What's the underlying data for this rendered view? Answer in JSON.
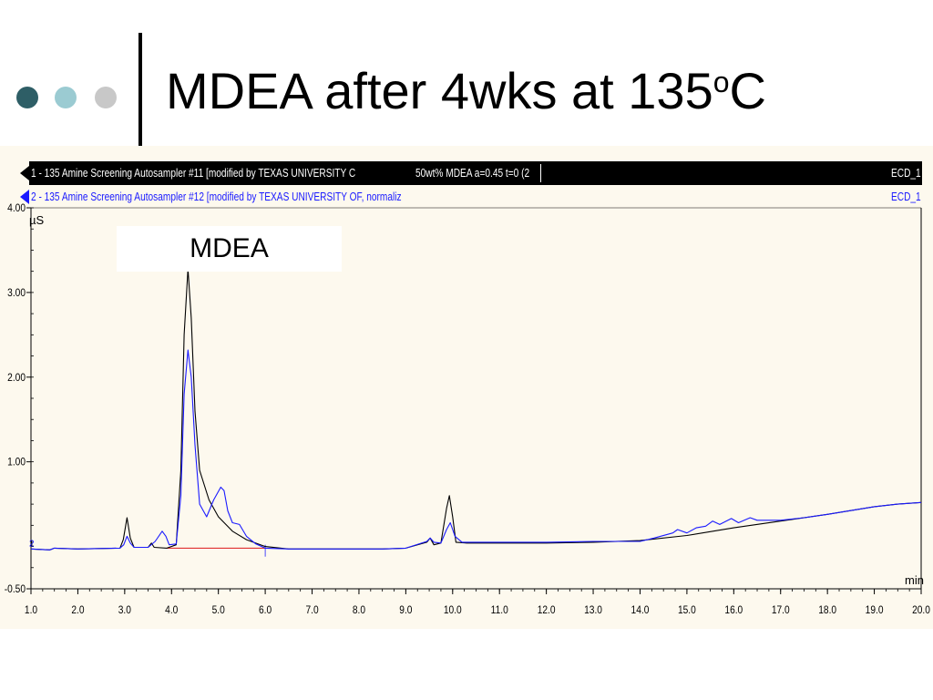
{
  "slide": {
    "title_main": "MDEA after 4wks at 135",
    "title_sup": "o",
    "title_end": "C",
    "dot_colors": [
      "#2e5e66",
      "#9bcbd2",
      "#c8c8c8"
    ]
  },
  "legend": {
    "row1_left": "1 - 135 Amine Screening Autosampler #11 [modified by TEXAS UNIVERSITY C",
    "row1_mid": "50wt% MDEA a=0.45 t=0 (2",
    "row1_right": "ECD_1",
    "row2_left": "2 - 135 Amine Screening Autosampler #12 [modified by TEXAS UNIVERSITY OF, normaliz",
    "row2_right": "ECD_1"
  },
  "annotation": {
    "label": "MDEA"
  },
  "chart_data": {
    "type": "line",
    "x_unit": "min",
    "y_unit": "µS",
    "xlim": [
      1.0,
      20.0
    ],
    "ylim": [
      -0.5,
      4.0
    ],
    "x_ticks": [
      "1.0",
      "2.0",
      "3.0",
      "4.0",
      "5.0",
      "6.0",
      "7.0",
      "8.0",
      "9.0",
      "10.0",
      "11.0",
      "12.0",
      "13.0",
      "14.0",
      "15.0",
      "16.0",
      "17.0",
      "18.0",
      "19.0",
      "20.0"
    ],
    "y_ticks": [
      {
        "value": 4.0,
        "label": "4.00"
      },
      {
        "value": 3.0,
        "label": "3.00"
      },
      {
        "value": 2.0,
        "label": "2.00"
      },
      {
        "value": 1.0,
        "label": "1.00"
      },
      {
        "value": -0.5,
        "label": "-0.50"
      }
    ],
    "series": [
      {
        "label": "1",
        "color": "#000000",
        "points": [
          [
            1.0,
            -0.03
          ],
          [
            1.4,
            -0.04
          ],
          [
            1.5,
            -0.02
          ],
          [
            2.0,
            -0.03
          ],
          [
            2.9,
            -0.02
          ],
          [
            2.97,
            0.08
          ],
          [
            3.05,
            0.34
          ],
          [
            3.12,
            0.1
          ],
          [
            3.2,
            -0.01
          ],
          [
            3.5,
            -0.01
          ],
          [
            3.57,
            0.04
          ],
          [
            3.63,
            -0.01
          ],
          [
            3.9,
            -0.02
          ],
          [
            4.1,
            0.02
          ],
          [
            4.2,
            0.9
          ],
          [
            4.27,
            2.5
          ],
          [
            4.35,
            3.28
          ],
          [
            4.42,
            2.7
          ],
          [
            4.5,
            1.6
          ],
          [
            4.6,
            0.9
          ],
          [
            4.8,
            0.55
          ],
          [
            5.0,
            0.35
          ],
          [
            5.3,
            0.18
          ],
          [
            5.6,
            0.08
          ],
          [
            6.0,
            0.0
          ],
          [
            6.5,
            -0.03
          ],
          [
            8.5,
            -0.03
          ],
          [
            9.0,
            -0.02
          ],
          [
            9.45,
            0.05
          ],
          [
            9.52,
            0.1
          ],
          [
            9.6,
            0.02
          ],
          [
            9.75,
            0.04
          ],
          [
            9.87,
            0.45
          ],
          [
            9.93,
            0.6
          ],
          [
            10.0,
            0.35
          ],
          [
            10.07,
            0.05
          ],
          [
            10.3,
            0.04
          ],
          [
            12.0,
            0.04
          ],
          [
            13.0,
            0.05
          ],
          [
            14.0,
            0.07
          ],
          [
            15.0,
            0.13
          ],
          [
            16.0,
            0.22
          ],
          [
            17.0,
            0.3
          ],
          [
            18.0,
            0.38
          ],
          [
            19.0,
            0.47
          ],
          [
            19.5,
            0.5
          ],
          [
            20.0,
            0.52
          ]
        ]
      },
      {
        "label": "2",
        "color": "#1a1aff",
        "points": [
          [
            1.0,
            -0.03
          ],
          [
            1.4,
            -0.04
          ],
          [
            1.5,
            -0.02
          ],
          [
            2.0,
            -0.03
          ],
          [
            2.9,
            -0.02
          ],
          [
            2.98,
            0.02
          ],
          [
            3.05,
            0.12
          ],
          [
            3.12,
            0.04
          ],
          [
            3.2,
            -0.01
          ],
          [
            3.5,
            -0.01
          ],
          [
            3.65,
            0.06
          ],
          [
            3.8,
            0.18
          ],
          [
            3.88,
            0.12
          ],
          [
            3.95,
            0.02
          ],
          [
            4.1,
            0.03
          ],
          [
            4.2,
            0.6
          ],
          [
            4.27,
            1.8
          ],
          [
            4.35,
            2.32
          ],
          [
            4.42,
            2.0
          ],
          [
            4.5,
            1.2
          ],
          [
            4.6,
            0.5
          ],
          [
            4.75,
            0.35
          ],
          [
            4.9,
            0.55
          ],
          [
            5.05,
            0.7
          ],
          [
            5.12,
            0.66
          ],
          [
            5.2,
            0.42
          ],
          [
            5.3,
            0.28
          ],
          [
            5.45,
            0.26
          ],
          [
            5.6,
            0.12
          ],
          [
            5.8,
            0.03
          ],
          [
            6.0,
            -0.02
          ],
          [
            6.5,
            -0.03
          ],
          [
            8.5,
            -0.03
          ],
          [
            9.0,
            -0.02
          ],
          [
            9.45,
            0.06
          ],
          [
            9.52,
            0.1
          ],
          [
            9.6,
            0.05
          ],
          [
            9.75,
            0.04
          ],
          [
            9.87,
            0.2
          ],
          [
            9.95,
            0.28
          ],
          [
            10.05,
            0.12
          ],
          [
            10.2,
            0.05
          ],
          [
            12.0,
            0.05
          ],
          [
            13.0,
            0.06
          ],
          [
            14.0,
            0.06
          ],
          [
            14.3,
            0.1
          ],
          [
            14.7,
            0.16
          ],
          [
            14.8,
            0.2
          ],
          [
            15.0,
            0.16
          ],
          [
            15.2,
            0.22
          ],
          [
            15.4,
            0.24
          ],
          [
            15.55,
            0.3
          ],
          [
            15.7,
            0.26
          ],
          [
            15.95,
            0.33
          ],
          [
            16.1,
            0.28
          ],
          [
            16.35,
            0.34
          ],
          [
            16.5,
            0.31
          ],
          [
            17.0,
            0.31
          ],
          [
            17.5,
            0.34
          ],
          [
            18.0,
            0.38
          ],
          [
            19.0,
            0.47
          ],
          [
            19.5,
            0.5
          ],
          [
            20.0,
            0.52
          ]
        ]
      }
    ],
    "baseline": {
      "color": "#e03030",
      "x": [
        3.9,
        6.0
      ],
      "y": [
        -0.02,
        -0.02
      ]
    }
  }
}
